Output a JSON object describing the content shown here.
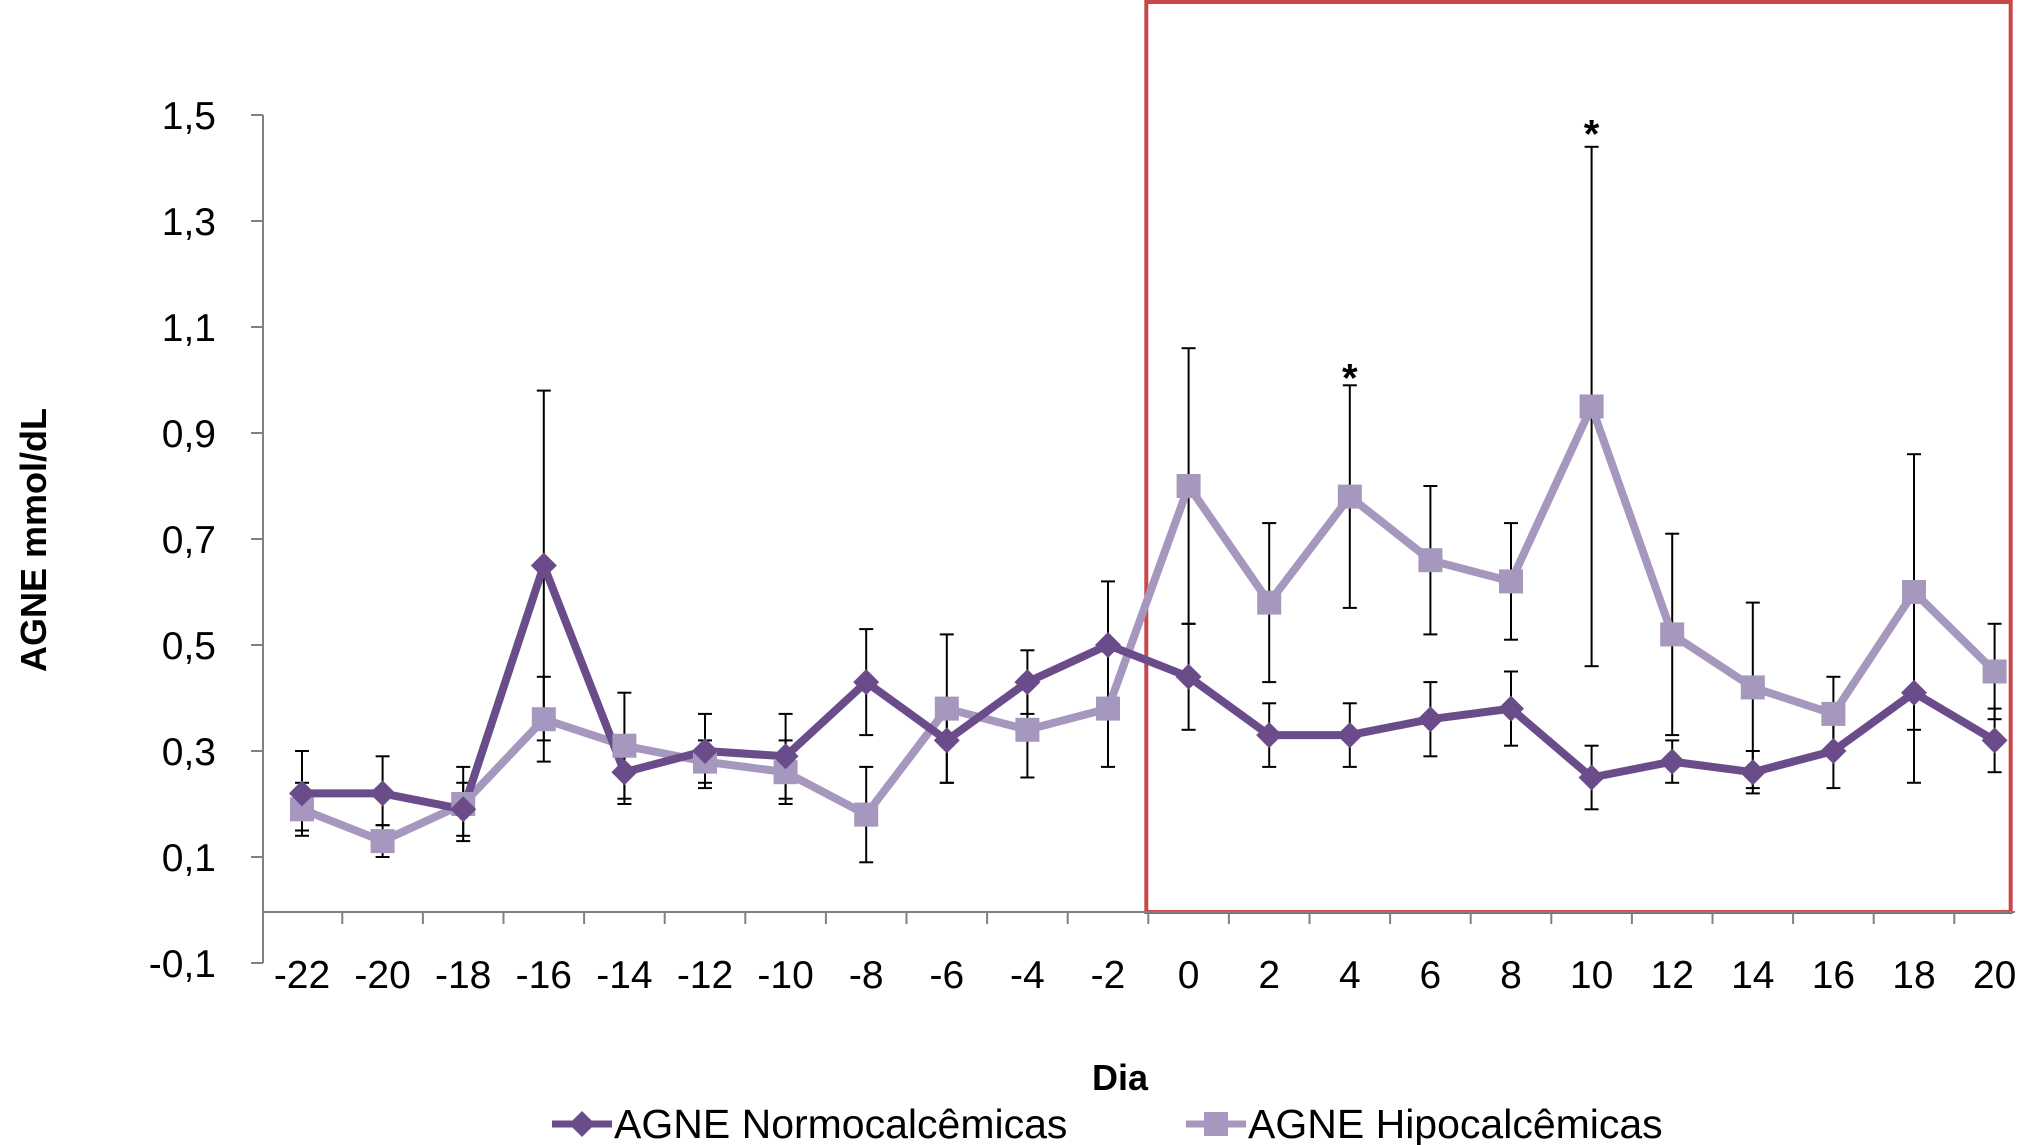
{
  "chart_data": {
    "type": "line",
    "xlabel": "Dia",
    "ylabel": "AGNE mmol/dL",
    "ylim": [
      -0.1,
      1.5
    ],
    "y_ticks": [
      "-0,1",
      "0,1",
      "0,3",
      "0,5",
      "0,7",
      "0,9",
      "1,1",
      "1,3",
      "1,5"
    ],
    "y_tick_values": [
      -0.1,
      0.1,
      0.3,
      0.5,
      0.7,
      0.9,
      1.1,
      1.3,
      1.5
    ],
    "x": [
      -22,
      -20,
      -18,
      -16,
      -14,
      -12,
      -10,
      -8,
      -6,
      -4,
      -2,
      0,
      2,
      4,
      6,
      8,
      10,
      12,
      14,
      16,
      18,
      20
    ],
    "x_ticks": [
      "-22",
      "-20",
      "-18",
      "-16",
      "-14",
      "-12",
      "-10",
      "-8",
      "-6",
      "-4",
      "-2",
      "0",
      "2",
      "4",
      "6",
      "8",
      "10",
      "12",
      "14",
      "16",
      "18",
      "20"
    ],
    "grid": false,
    "legend_position": "bottom",
    "series": [
      {
        "name": "AGNE Normocalcêmicas",
        "color": "#6b4c8a",
        "marker": "diamond",
        "values": [
          0.22,
          0.22,
          0.19,
          0.65,
          0.26,
          0.3,
          0.29,
          0.43,
          0.32,
          0.43,
          0.5,
          0.44,
          0.33,
          0.33,
          0.36,
          0.38,
          0.25,
          0.28,
          0.26,
          0.3,
          0.41,
          0.32
        ],
        "error_low": [
          0.15,
          0.16,
          0.14,
          0.32,
          0.21,
          0.23,
          0.21,
          0.33,
          0.24,
          0.37,
          0.38,
          0.34,
          0.27,
          0.27,
          0.29,
          0.31,
          0.19,
          0.24,
          0.22,
          0.23,
          0.24,
          0.26
        ],
        "error_high": [
          0.3,
          0.29,
          0.24,
          0.98,
          0.31,
          0.37,
          0.37,
          0.53,
          0.4,
          0.49,
          0.62,
          0.54,
          0.39,
          0.39,
          0.43,
          0.45,
          0.31,
          0.32,
          0.3,
          0.37,
          0.58,
          0.38
        ]
      },
      {
        "name": "AGNE Hipocalcêmicas",
        "color": "#a597bd",
        "marker": "square",
        "values": [
          0.19,
          0.13,
          0.2,
          0.36,
          0.31,
          0.28,
          0.26,
          0.18,
          0.38,
          0.34,
          0.38,
          0.8,
          0.58,
          0.78,
          0.66,
          0.62,
          0.95,
          0.52,
          0.42,
          0.37,
          0.6,
          0.45
        ],
        "error_low": [
          0.14,
          0.1,
          0.13,
          0.28,
          0.2,
          0.24,
          0.2,
          0.09,
          0.24,
          0.25,
          0.27,
          0.54,
          0.43,
          0.57,
          0.52,
          0.51,
          0.46,
          0.33,
          0.23,
          0.3,
          0.34,
          0.36
        ],
        "error_high": [
          0.24,
          0.16,
          0.27,
          0.44,
          0.41,
          0.32,
          0.32,
          0.27,
          0.52,
          0.43,
          0.49,
          1.06,
          0.73,
          0.99,
          0.8,
          0.73,
          1.44,
          0.71,
          0.58,
          0.44,
          0.86,
          0.54
        ]
      }
    ],
    "annotations": [
      {
        "text": "*",
        "x": 4,
        "y": 1.02
      },
      {
        "text": "*",
        "x": 10,
        "y": 1.48
      }
    ],
    "highlight_box": {
      "x_from": -1,
      "x_to": 20.3,
      "color": "#c9474a"
    }
  }
}
